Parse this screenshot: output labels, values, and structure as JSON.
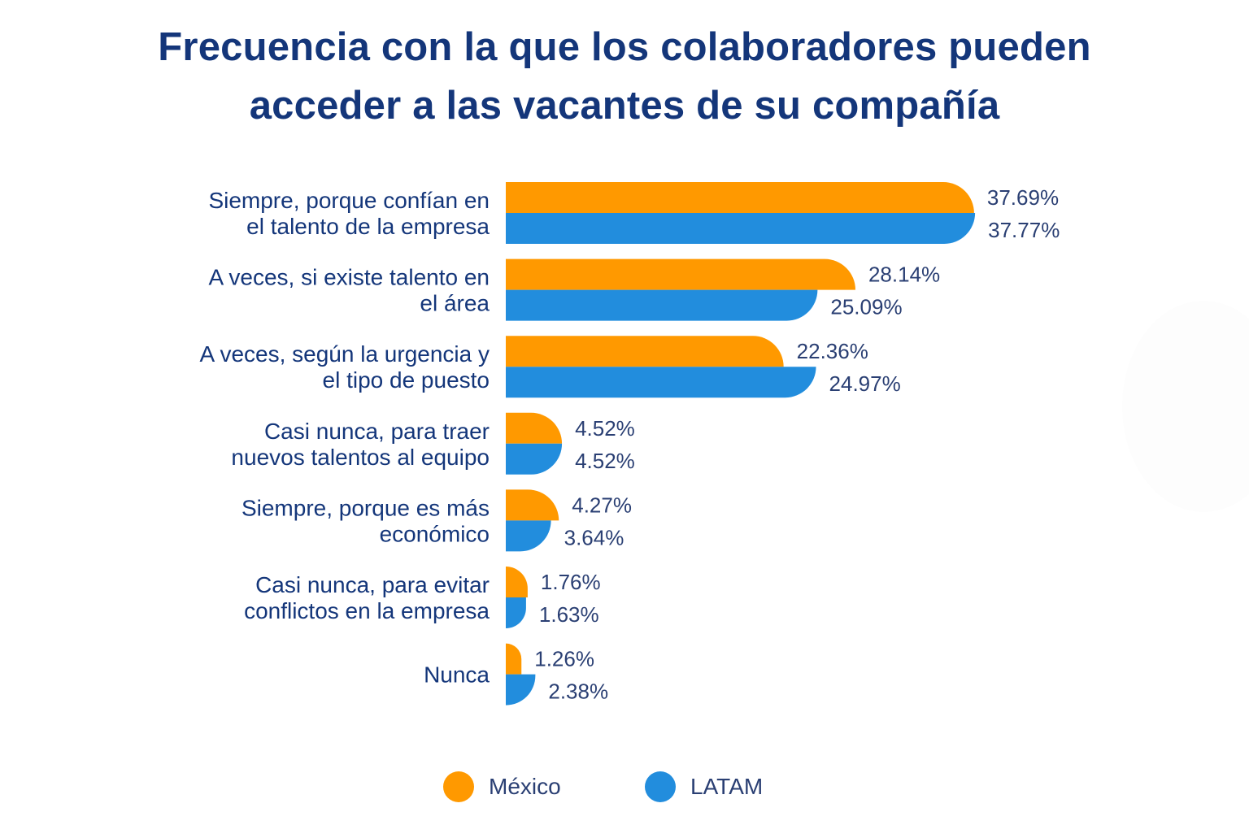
{
  "chart_data": {
    "type": "bar",
    "orientation": "horizontal",
    "title": "Frecuencia con la que los colaboradores pueden acceder a las vacantes de su compañía",
    "title_lines": [
      "Frecuencia con la que los colaboradores pueden",
      "acceder a las vacantes de su compañía"
    ],
    "xlabel": "",
    "ylabel": "",
    "xlim": [
      0,
      40
    ],
    "grid": false,
    "legend_position": "bottom-center",
    "value_suffix": "%",
    "categories": [
      [
        "Siempre, porque confían en",
        "el talento de la empresa"
      ],
      [
        "A veces, si existe talento en",
        "el área"
      ],
      [
        "A veces, según la urgencia y",
        "el tipo de puesto"
      ],
      [
        "Casi nunca, para traer",
        "nuevos talentos al equipo"
      ],
      [
        "Siempre, porque es más",
        "económico"
      ],
      [
        "Casi nunca, para evitar",
        "conflictos en la empresa"
      ],
      [
        "Nunca"
      ]
    ],
    "series": [
      {
        "name": "México",
        "color": "#ff9900",
        "values": [
          37.69,
          28.14,
          22.36,
          4.52,
          4.27,
          1.76,
          1.26
        ],
        "labels": [
          "37.69%",
          "28.14%",
          "22.36%",
          "4.52%",
          "4.27%",
          "1.76%",
          "1.26%"
        ]
      },
      {
        "name": "LATAM",
        "color": "#228ddd",
        "values": [
          37.77,
          25.09,
          24.97,
          4.52,
          3.64,
          1.63,
          2.38
        ],
        "labels": [
          "37.77%",
          "25.09%",
          "24.97%",
          "4.52%",
          "3.64%",
          "1.63%",
          "2.38%"
        ]
      }
    ]
  },
  "legend": {
    "items": [
      {
        "label": "México",
        "color": "#ff9900"
      },
      {
        "label": "LATAM",
        "color": "#228ddd"
      }
    ]
  }
}
